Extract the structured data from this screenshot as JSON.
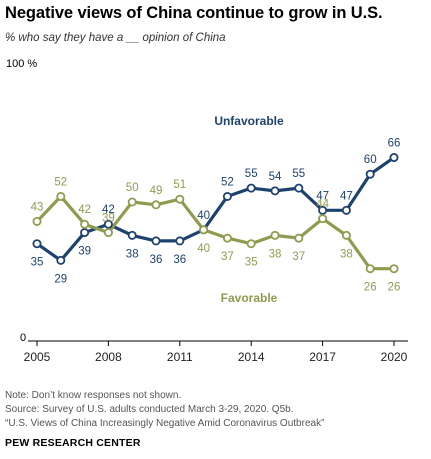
{
  "header": {
    "title": "Negative views of China continue to grow in U.S.",
    "subtitle": "% who say they have a __ opinion of China"
  },
  "footer": {
    "note": "Note: Don’t know responses not shown.",
    "source": "Source: Survey of U.S. adults conducted March 3-29, 2020. Q5b.",
    "report": "“U.S. Views of China Increasingly Negative Amid Coronavirus Outbreak”",
    "org": "PEW RESEARCH CENTER"
  },
  "colors": {
    "unfavorable": "#1d4270",
    "favorable": "#8f9c4f",
    "axis": "#000000"
  },
  "chart_data": {
    "type": "line",
    "title": "Negative views of China continue to grow in U.S.",
    "subtitle": "% who say they have a __ opinion of China",
    "ylim": [
      0,
      100
    ],
    "y_top_label": "100 %",
    "y_zero_label": "0",
    "x_range": [
      2005,
      2020
    ],
    "x_ticks": [
      "2005",
      "2008",
      "2011",
      "2014",
      "2017",
      "2020"
    ],
    "grid": false,
    "series": [
      {
        "name": "Unfavorable",
        "color": "#1d4270",
        "points": [
          {
            "x": 2005,
            "y": 35
          },
          {
            "x": 2006,
            "y": 29
          },
          {
            "x": 2007,
            "y": 39
          },
          {
            "x": 2008,
            "y": 42
          },
          {
            "x": 2009,
            "y": 38
          },
          {
            "x": 2010,
            "y": 36
          },
          {
            "x": 2011,
            "y": 36
          },
          {
            "x": 2012,
            "y": 40
          },
          {
            "x": 2013,
            "y": 52
          },
          {
            "x": 2014,
            "y": 55
          },
          {
            "x": 2015,
            "y": 54
          },
          {
            "x": 2016,
            "y": 55
          },
          {
            "x": 2017,
            "y": 47
          },
          {
            "x": 2018,
            "y": 47
          },
          {
            "x": 2019,
            "y": 60
          },
          {
            "x": 2020,
            "y": 66
          }
        ]
      },
      {
        "name": "Favorable",
        "color": "#8f9c4f",
        "points": [
          {
            "x": 2005,
            "y": 43
          },
          {
            "x": 2006,
            "y": 52
          },
          {
            "x": 2007,
            "y": 42
          },
          {
            "x": 2008,
            "y": 39
          },
          {
            "x": 2009,
            "y": 50
          },
          {
            "x": 2010,
            "y": 49
          },
          {
            "x": 2011,
            "y": 51
          },
          {
            "x": 2012,
            "y": 40
          },
          {
            "x": 2013,
            "y": 37
          },
          {
            "x": 2014,
            "y": 35
          },
          {
            "x": 2015,
            "y": 38
          },
          {
            "x": 2016,
            "y": 37
          },
          {
            "x": 2017,
            "y": 44
          },
          {
            "x": 2018,
            "y": 38
          },
          {
            "x": 2019,
            "y": 26
          },
          {
            "x": 2020,
            "y": 26
          }
        ]
      }
    ]
  }
}
